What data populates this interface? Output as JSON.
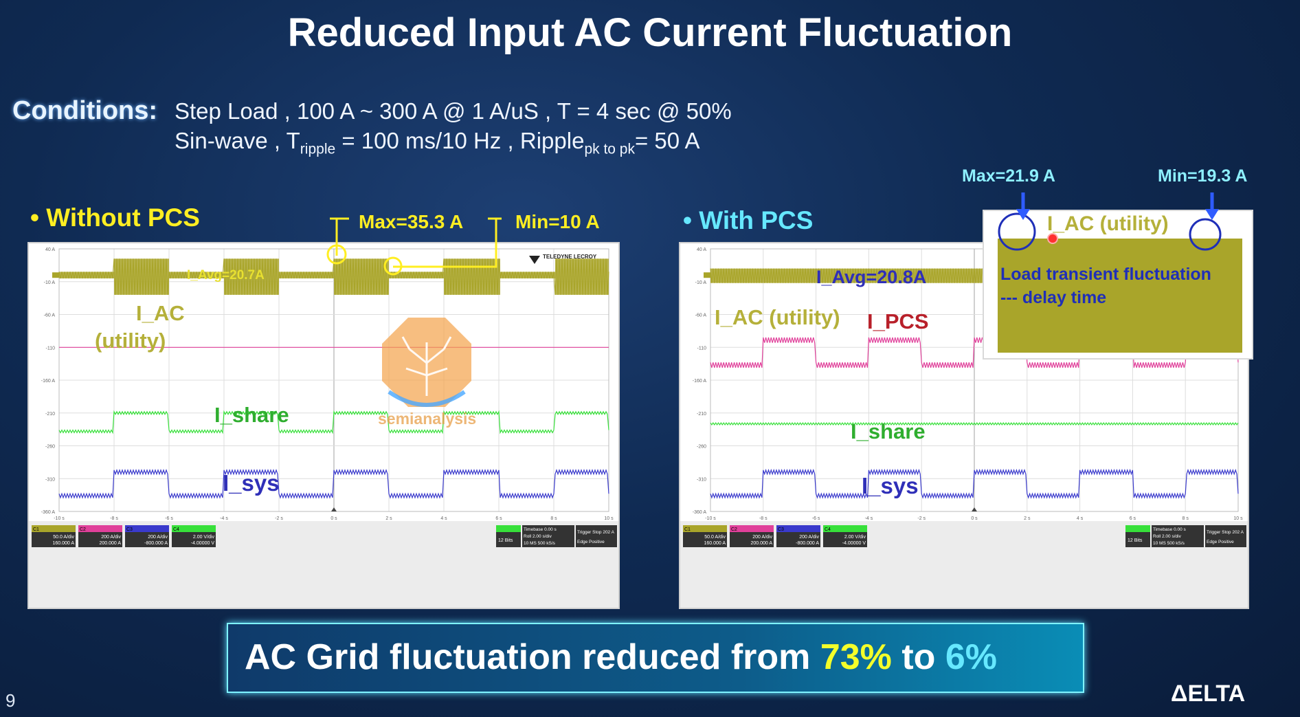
{
  "title": "Reduced Input AC Current Fluctuation",
  "conditions": {
    "label": "Conditions:",
    "line1": "Step Load , 100 A ~ 300 A @ 1 A/uS , T = 4 sec @ 50%",
    "line2_pre": "Sin-wave , T",
    "line2_sub1": "ripple",
    "line2_mid": " = 100 ms/10 Hz , Ripple",
    "line2_sub2": "pk to pk",
    "line2_post": "= 50 A"
  },
  "banner": {
    "pre": "AC Grid fluctuation reduced from ",
    "v1": "73%",
    "mid": " to ",
    "v2": "6%"
  },
  "page_number": "9",
  "brand": "ΔELTA",
  "watermark": "semianalysis",
  "colors": {
    "ac": "#a9a52a",
    "pcs": "#e0409a",
    "share": "#37e03a",
    "sys": "#3a3acc",
    "yellow": "#ffee22",
    "cyan": "#66e8ff"
  },
  "chart_data": [
    {
      "type": "line",
      "panel": "left",
      "heading": "• Without PCS",
      "annotations": {
        "max": "Max=35.3 A",
        "min": "Min=10 A",
        "avg": "I_Avg=20.7A"
      },
      "scope_brand": "TELEDYNE LECROY",
      "x_unit": "s",
      "x_ticks": [
        "-10 s",
        "-8 s",
        "-6 s",
        "-4 s",
        "-2 s",
        "0 s",
        "2 s",
        "4 s",
        "6 s",
        "8 s",
        "10 s"
      ],
      "y_ticks": [
        "40 A",
        "-10 A",
        "-60 A",
        "-110",
        "-160 A",
        "-210",
        "-260",
        "-310",
        "-360 A"
      ],
      "xlim": [
        -10,
        10
      ],
      "step_period_s": 4,
      "load_high_intervals": [
        [
          -8,
          -6
        ],
        [
          -4,
          -2
        ],
        [
          0,
          2
        ],
        [
          4,
          6
        ],
        [
          8,
          10
        ]
      ],
      "series": [
        {
          "name": "I_AC (utility)",
          "color": "#a9a52a",
          "low_band": [
            -5,
            5
          ],
          "high_band": [
            -30,
            25
          ]
        },
        {
          "name": "I_PCS",
          "color": "#e0409a",
          "low_band": [
            -110,
            -110
          ],
          "high_band": [
            -110,
            -110
          ]
        },
        {
          "name": "I_share",
          "color": "#37e03a",
          "low_band": [
            -240,
            -236
          ],
          "high_band": [
            -212,
            -208
          ]
        },
        {
          "name": "I_sys",
          "color": "#3a3acc",
          "low_band": [
            -339,
            -333
          ],
          "high_band": [
            -303,
            -297
          ]
        }
      ],
      "labels": {
        "ac": "I_AC",
        "ac2": "(utility)",
        "share": "I_share",
        "sys": "I_sys"
      },
      "bottom_bar": {
        "channels": [
          {
            "id": "C1",
            "scale": "50.0 A/div",
            "offset": "160.000 A"
          },
          {
            "id": "C2",
            "scale": "200 A/div",
            "offset": "200.000 A"
          },
          {
            "id": "C3",
            "scale": "200 A/div",
            "offset": "-800.000 A"
          },
          {
            "id": "C4",
            "scale": "2.00 V/div",
            "offset": "-4.00000 V"
          }
        ],
        "bits": "12 Bits",
        "timebase": "Timebase 0.00 s",
        "roll": "Roll 2.00 s/div",
        "ms": "10 MS 500 kS/s",
        "trigger": "Trigger Stop 202 A",
        "edge": "Edge Positive"
      }
    },
    {
      "type": "line",
      "panel": "right",
      "heading": "• With PCS",
      "annotations": {
        "max": "Max=21.9 A",
        "min": "Min=19.3 A",
        "avg": "I_Avg=20.8A"
      },
      "inset": {
        "title": "I_AC (utility)",
        "line1": "Load transient fluctuation",
        "line2": "--- delay time"
      },
      "x_unit": "s",
      "x_ticks": [
        "-10 s",
        "-8 s",
        "-6 s",
        "-4 s",
        "-2 s",
        "0 s",
        "2 s",
        "4 s",
        "6 s",
        "8 s",
        "10 s"
      ],
      "y_ticks": [
        "40 A",
        "-10 A",
        "-60 A",
        "-110",
        "-160 A",
        "-210",
        "-260",
        "-310",
        "-360 A"
      ],
      "xlim": [
        -10,
        10
      ],
      "step_period_s": 4,
      "load_high_intervals": [
        [
          -8,
          -6
        ],
        [
          -4,
          -2
        ],
        [
          0,
          2
        ],
        [
          4,
          6
        ],
        [
          8,
          10
        ]
      ],
      "series": [
        {
          "name": "I_AC (utility)",
          "color": "#a9a52a",
          "low_band": [
            -12,
            10
          ],
          "high_band": [
            -12,
            10
          ]
        },
        {
          "name": "I_PCS",
          "color": "#e0409a",
          "low_band": [
            -141,
            -133
          ],
          "high_band": [
            -103,
            -95
          ]
        },
        {
          "name": "I_share",
          "color": "#37e03a",
          "low_band": [
            -228,
            -225
          ],
          "high_band": [
            -228,
            -225
          ]
        },
        {
          "name": "I_sys",
          "color": "#3a3acc",
          "low_band": [
            -339,
            -333
          ],
          "high_band": [
            -303,
            -297
          ]
        }
      ],
      "labels": {
        "ac": "I_AC (utility)",
        "pcs": "I_PCS",
        "share": "I_share",
        "sys": "I_sys"
      },
      "bottom_bar": {
        "channels": [
          {
            "id": "C1",
            "scale": "50.0 A/div",
            "offset": "160.000 A"
          },
          {
            "id": "C2",
            "scale": "200 A/div",
            "offset": "200.000 A"
          },
          {
            "id": "C3",
            "scale": "200 A/div",
            "offset": "-800.000 A"
          },
          {
            "id": "C4",
            "scale": "2.00 V/div",
            "offset": "-4.00000 V"
          }
        ],
        "bits": "12 Bits",
        "timebase": "Timebase 0.00 s",
        "roll": "Roll 2.00 s/div",
        "ms": "10 MS 500 kS/s",
        "trigger": "Trigger Stop 202 A",
        "edge": "Edge Positive"
      }
    }
  ]
}
